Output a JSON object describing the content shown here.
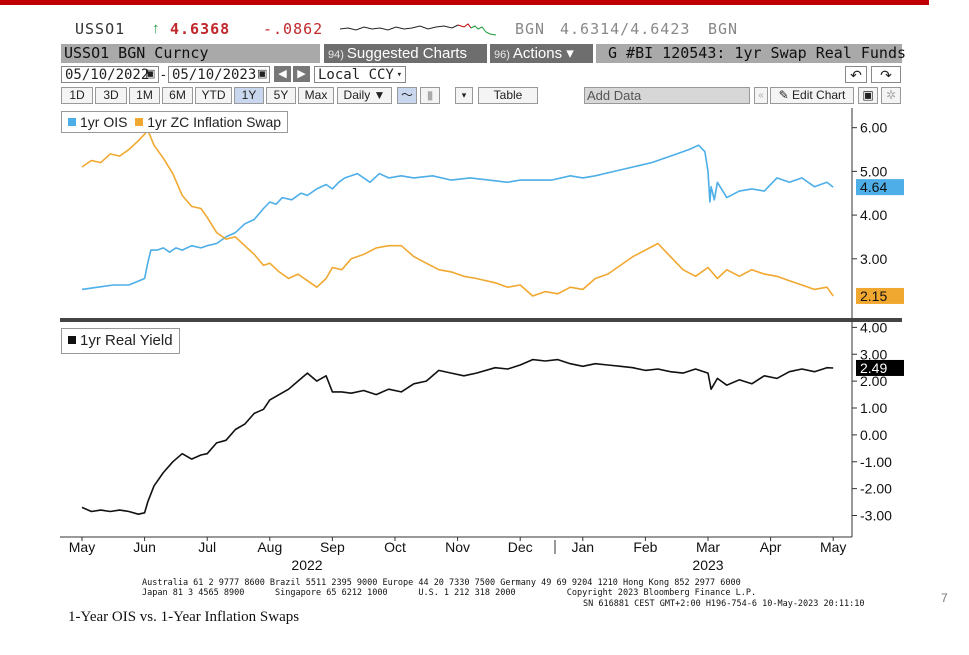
{
  "ticker": {
    "symbol": "USSO1",
    "arrow": "↑",
    "last": "4.6368",
    "change": "-.0862",
    "source1": "BGN",
    "bid_ask": "4.6314/4.6423",
    "source2": "BGN"
  },
  "header": {
    "security": "USSO1 BGN Curncy",
    "suggested_num": "94)",
    "suggested_label": "Suggested Charts",
    "actions_num": "96)",
    "actions_label": "Actions ▾",
    "chart_title": "G #BI 120543: 1yr Swap Real Funds"
  },
  "controls": {
    "start_date": "05/10/2022",
    "end_date": "05/10/2023",
    "currency": "Local CCY",
    "ranges": [
      "1D",
      "3D",
      "1M",
      "6M",
      "YTD",
      "1Y",
      "5Y",
      "Max"
    ],
    "selected_range": "1Y",
    "frequency": "Daily ▼",
    "table_label": "Table",
    "add_data_placeholder": "Add Data",
    "edit_chart_label": "✎ Edit Chart"
  },
  "colors": {
    "ois": "#4daee8",
    "inflation": "#f0a830",
    "real_yield": "#111111",
    "header_red": "#c00000"
  },
  "chart_data": [
    {
      "type": "line",
      "legend": [
        "1yr OIS",
        "1yr ZC Inflation Swap"
      ],
      "x_labels": [
        "May",
        "Jun",
        "Jul",
        "Aug",
        "Sep",
        "Oct",
        "Nov",
        "Dec",
        "Jan",
        "Feb",
        "Mar",
        "Apr",
        "May"
      ],
      "year_labels": [
        "2022",
        "2023"
      ],
      "y_ticks": [
        "6.00",
        "5.00",
        "4.00",
        "3.00"
      ],
      "ylim": [
        1.6,
        6.45
      ],
      "last_values": [
        "4.64",
        "2.15"
      ],
      "series": [
        {
          "name": "1yr OIS",
          "x": [
            0,
            0.25,
            0.5,
            0.75,
            1,
            1.05,
            1.1,
            1.15,
            1.2,
            1.3,
            1.4,
            1.5,
            1.6,
            1.75,
            1.9,
            2,
            2.15,
            2.3,
            2.45,
            2.6,
            2.75,
            2.9,
            3,
            3.1,
            3.2,
            3.35,
            3.5,
            3.6,
            3.75,
            3.9,
            4,
            4.1,
            4.2,
            4.4,
            4.6,
            4.75,
            4.9,
            5.1,
            5.3,
            5.6,
            5.9,
            6.2,
            6.5,
            6.8,
            7,
            7.2,
            7.5,
            7.8,
            8,
            8.2,
            8.5,
            8.8,
            9.1,
            9.4,
            9.7,
            9.85,
            9.95,
            10,
            10.03,
            10.05,
            10.1,
            10.15,
            10.3,
            10.5,
            10.7,
            10.9,
            11.1,
            11.3,
            11.5,
            11.7,
            11.9,
            12
          ],
          "values": [
            2.3,
            2.35,
            2.4,
            2.4,
            2.55,
            2.9,
            3.2,
            3.2,
            3.2,
            3.25,
            3.15,
            3.25,
            3.2,
            3.3,
            3.25,
            3.3,
            3.35,
            3.5,
            3.6,
            3.8,
            3.9,
            4.15,
            4.3,
            4.25,
            4.4,
            4.35,
            4.5,
            4.45,
            4.6,
            4.7,
            4.6,
            4.75,
            4.85,
            4.95,
            4.75,
            4.95,
            4.85,
            4.9,
            4.85,
            4.9,
            4.8,
            4.85,
            4.8,
            4.75,
            4.8,
            4.8,
            4.8,
            4.9,
            4.85,
            4.9,
            5.0,
            5.1,
            5.2,
            5.35,
            5.5,
            5.6,
            5.45,
            5.0,
            4.3,
            4.65,
            4.35,
            4.75,
            4.4,
            4.55,
            4.6,
            4.55,
            4.85,
            4.75,
            4.85,
            4.65,
            4.75,
            4.64
          ]
        },
        {
          "name": "1yr ZC Inflation Swap",
          "x": [
            0,
            0.15,
            0.3,
            0.45,
            0.6,
            0.75,
            0.9,
            1,
            1.05,
            1.15,
            1.3,
            1.45,
            1.6,
            1.75,
            1.9,
            2,
            2.15,
            2.3,
            2.45,
            2.6,
            2.75,
            2.9,
            3,
            3.15,
            3.3,
            3.45,
            3.6,
            3.75,
            3.9,
            4,
            4.15,
            4.3,
            4.5,
            4.7,
            4.9,
            5.1,
            5.3,
            5.5,
            5.7,
            5.9,
            6.1,
            6.3,
            6.6,
            6.8,
            7,
            7.2,
            7.4,
            7.6,
            7.8,
            8,
            8.2,
            8.4,
            8.6,
            8.8,
            9,
            9.2,
            9.4,
            9.6,
            9.8,
            10,
            10.15,
            10.3,
            10.5,
            10.7,
            10.9,
            11.1,
            11.3,
            11.5,
            11.7,
            11.9,
            12
          ],
          "values": [
            5.1,
            5.25,
            5.2,
            5.4,
            5.35,
            5.5,
            5.7,
            5.85,
            5.95,
            5.6,
            5.3,
            4.95,
            4.45,
            4.2,
            4.15,
            3.95,
            3.6,
            3.45,
            3.5,
            3.3,
            3.1,
            2.85,
            2.9,
            2.7,
            2.55,
            2.65,
            2.5,
            2.35,
            2.55,
            2.8,
            2.75,
            3.0,
            3.1,
            3.25,
            3.3,
            3.3,
            3.05,
            2.9,
            2.75,
            2.7,
            2.6,
            2.55,
            2.45,
            2.35,
            2.4,
            2.15,
            2.25,
            2.2,
            2.35,
            2.3,
            2.55,
            2.65,
            2.85,
            3.05,
            3.2,
            3.35,
            3.05,
            2.75,
            2.6,
            2.8,
            2.55,
            2.75,
            2.6,
            2.75,
            2.65,
            2.6,
            2.5,
            2.4,
            2.3,
            2.35,
            2.15
          ]
        }
      ]
    },
    {
      "type": "line",
      "legend": [
        "1yr Real Yield"
      ],
      "y_ticks": [
        "4.00",
        "3.00",
        "2.00",
        "1.00",
        "0.00",
        "-1.00",
        "-2.00",
        "-3.00"
      ],
      "ylim": [
        -3.8,
        4.2
      ],
      "last_values": [
        "2.49"
      ],
      "series": [
        {
          "name": "1yr Real Yield",
          "x": [
            0,
            0.15,
            0.3,
            0.45,
            0.6,
            0.75,
            0.9,
            1,
            1.05,
            1.15,
            1.3,
            1.45,
            1.6,
            1.75,
            1.9,
            2,
            2.15,
            2.3,
            2.45,
            2.6,
            2.75,
            2.9,
            3,
            3.15,
            3.3,
            3.45,
            3.6,
            3.75,
            3.9,
            4,
            4.15,
            4.3,
            4.5,
            4.7,
            4.9,
            5.1,
            5.3,
            5.5,
            5.7,
            5.9,
            6.1,
            6.3,
            6.6,
            6.8,
            7,
            7.2,
            7.4,
            7.6,
            7.8,
            8,
            8.2,
            8.4,
            8.6,
            8.8,
            9,
            9.2,
            9.4,
            9.6,
            9.8,
            10,
            10.05,
            10.15,
            10.3,
            10.5,
            10.7,
            10.9,
            11.1,
            11.3,
            11.5,
            11.7,
            11.9,
            12
          ],
          "values": [
            -2.7,
            -2.85,
            -2.8,
            -2.85,
            -2.8,
            -2.85,
            -2.95,
            -2.9,
            -2.5,
            -1.9,
            -1.4,
            -1.0,
            -0.7,
            -0.9,
            -0.75,
            -0.7,
            -0.3,
            -0.2,
            0.2,
            0.4,
            0.8,
            0.95,
            1.3,
            1.5,
            1.7,
            2.0,
            2.3,
            2.0,
            2.2,
            1.6,
            1.6,
            1.55,
            1.65,
            1.5,
            1.7,
            1.6,
            1.9,
            2.0,
            2.4,
            2.3,
            2.2,
            2.3,
            2.5,
            2.45,
            2.6,
            2.8,
            2.75,
            2.8,
            2.65,
            2.55,
            2.65,
            2.6,
            2.55,
            2.5,
            2.4,
            2.45,
            2.35,
            2.3,
            2.45,
            2.3,
            1.7,
            2.1,
            1.85,
            2.05,
            1.9,
            2.2,
            2.1,
            2.35,
            2.45,
            2.35,
            2.5,
            2.49
          ]
        }
      ]
    }
  ],
  "footer": {
    "line1": "Australia 61 2 9777 8600 Brazil 5511 2395 9000 Europe 44 20 7330 7500 Germany 49 69 9204 1210 Hong Kong 852 2977 6000",
    "line2": "Japan 81 3 4565 8900      Singapore 65 6212 1000      U.S. 1 212 318 2000          Copyright 2023 Bloomberg Finance L.P.",
    "line3": "SN 616881 CEST GMT+2:00 H196-754-6 10-May-2023 20:11:10"
  },
  "caption": "1-Year OIS vs. 1-Year Inflation Swaps",
  "page_number": "7"
}
